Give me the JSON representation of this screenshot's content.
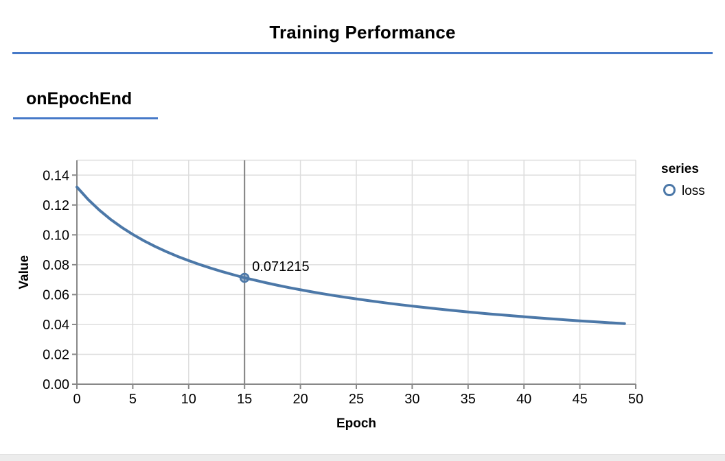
{
  "header": {
    "title": "Training Performance"
  },
  "section": {
    "label": "onEpochEnd"
  },
  "colors": {
    "accent_rule": "#4679c8",
    "line": "#4c78a8",
    "grid": "#dddddd",
    "axis": "#888888",
    "highlight_rule": "#808080",
    "text": "#000000",
    "bottom_strip": "#ececec"
  },
  "chart_data": {
    "type": "line",
    "title": "",
    "xlabel": "Epoch",
    "ylabel": "Value",
    "xlim": [
      0,
      50
    ],
    "ylim": [
      0,
      0.15
    ],
    "x_ticks": [
      0,
      5,
      10,
      15,
      20,
      25,
      30,
      35,
      40,
      45,
      50
    ],
    "y_ticks": [
      0,
      0.02,
      0.04,
      0.06,
      0.08,
      0.1,
      0.12,
      0.14
    ],
    "grid": true,
    "legend": {
      "title": "series",
      "position": "right",
      "items": [
        {
          "label": "loss",
          "color": "#4c78a8",
          "marker": "circle-outline"
        }
      ]
    },
    "series": [
      {
        "name": "loss",
        "x": [
          0,
          1,
          2,
          3,
          4,
          5,
          6,
          7,
          8,
          9,
          10,
          11,
          12,
          13,
          14,
          15,
          16,
          17,
          18,
          19,
          20,
          21,
          22,
          23,
          24,
          25,
          26,
          27,
          28,
          29,
          30,
          31,
          32,
          33,
          34,
          35,
          36,
          37,
          38,
          39,
          40,
          41,
          42,
          43,
          44,
          45,
          46,
          47,
          48,
          49
        ],
        "values": [
          0.13202,
          0.1237,
          0.11661,
          0.11045,
          0.10506,
          0.1003,
          0.09604,
          0.09221,
          0.08875,
          0.0856,
          0.08272,
          0.08008,
          0.07763,
          0.07538,
          0.07328,
          0.071215,
          0.06949,
          0.06778,
          0.06616,
          0.06464,
          0.06321,
          0.06186,
          0.06057,
          0.05935,
          0.0582,
          0.05709,
          0.05604,
          0.05504,
          0.05408,
          0.05316,
          0.05229,
          0.05144,
          0.05063,
          0.04986,
          0.04911,
          0.04839,
          0.04769,
          0.04702,
          0.04638,
          0.04575,
          0.04515,
          0.04457,
          0.044,
          0.04346,
          0.04293,
          0.04241,
          0.04192,
          0.04143,
          0.04096,
          0.04051
        ]
      }
    ],
    "highlight": {
      "series": "loss",
      "x": 15,
      "value": 0.071215,
      "label": "0.071215"
    }
  }
}
